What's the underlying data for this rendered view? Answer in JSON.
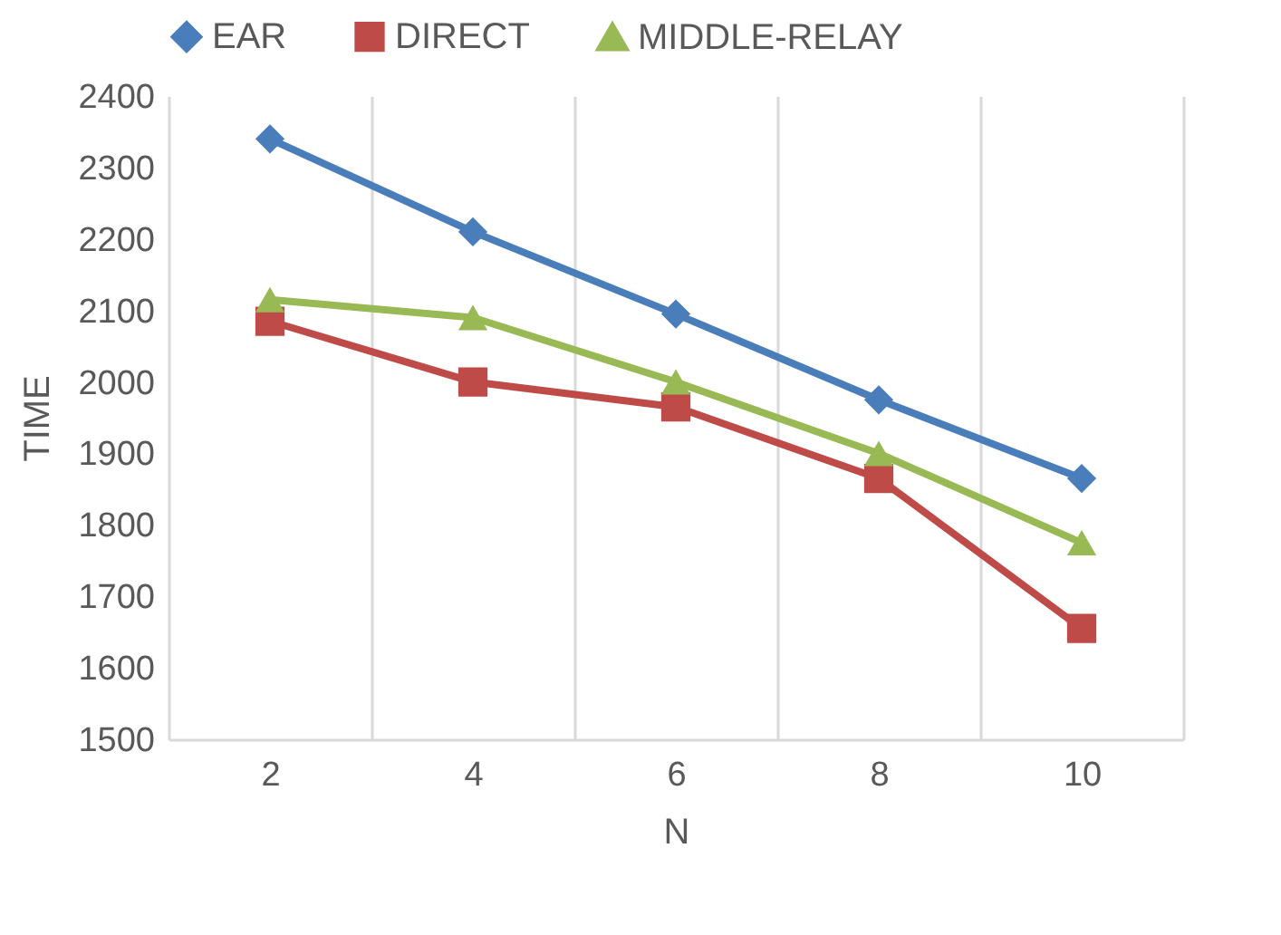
{
  "chart_data": {
    "type": "line",
    "xlabel": "N",
    "ylabel": "TIME",
    "categories": [
      "2",
      "4",
      "6",
      "8",
      "10"
    ],
    "series": [
      {
        "name": "EAR",
        "color": "#4a7ebb",
        "marker": "diamond",
        "values": [
          2340,
          2210,
          2095,
          1975,
          1865
        ]
      },
      {
        "name": "DIRECT",
        "color": "#be4b48",
        "marker": "square",
        "values": [
          2085,
          2000,
          1965,
          1865,
          1655
        ]
      },
      {
        "name": "MIDDLE-RELAY",
        "color": "#98b954",
        "marker": "triangle",
        "values": [
          2115,
          2090,
          2000,
          1900,
          1775
        ]
      }
    ],
    "ylim": [
      1500,
      2400
    ],
    "yticks": [
      1500,
      1600,
      1700,
      1800,
      1900,
      2000,
      2100,
      2200,
      2300,
      2400
    ],
    "grid": "x",
    "legend": "top",
    "line_style": "solid"
  }
}
